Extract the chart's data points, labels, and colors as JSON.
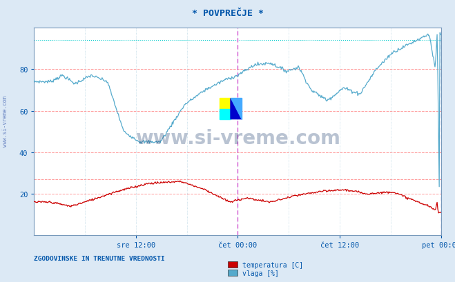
{
  "title": "* POVPREČJE *",
  "bg_color": "#dce9f5",
  "plot_bg_color": "#ffffff",
  "grid_color_h": "#ff9999",
  "grid_color_v": "#aaccdd",
  "xlabel_color": "#0055aa",
  "ylim": [
    0,
    100
  ],
  "yticks": [
    20,
    40,
    60,
    80
  ],
  "hline_red": 27.0,
  "hline_cyan": 94.0,
  "xtick_labels": [
    "sre 12:00",
    "čet 00:00",
    "čet 12:00",
    "pet 00:00"
  ],
  "xtick_positions": [
    0.25,
    0.5,
    0.75,
    1.0
  ],
  "vline_magenta_x": 0.5,
  "vline_blue_x": 1.0,
  "watermark": "www.si-vreme.com",
  "watermark_color": "#1a3a6b",
  "watermark_alpha": 0.3,
  "side_text": "www.si-vreme.com",
  "legend_label1": "temperatura [C]",
  "legend_label2": "vlaga [%]",
  "legend_color1": "#cc0000",
  "legend_color2": "#55aacc",
  "footer_text": "ZGODOVINSKE IN TRENUTNE VREDNOSTI",
  "footer_color": "#0055aa",
  "title_color": "#0055aa",
  "temp_color": "#cc0000",
  "vlaga_color": "#55aacc"
}
